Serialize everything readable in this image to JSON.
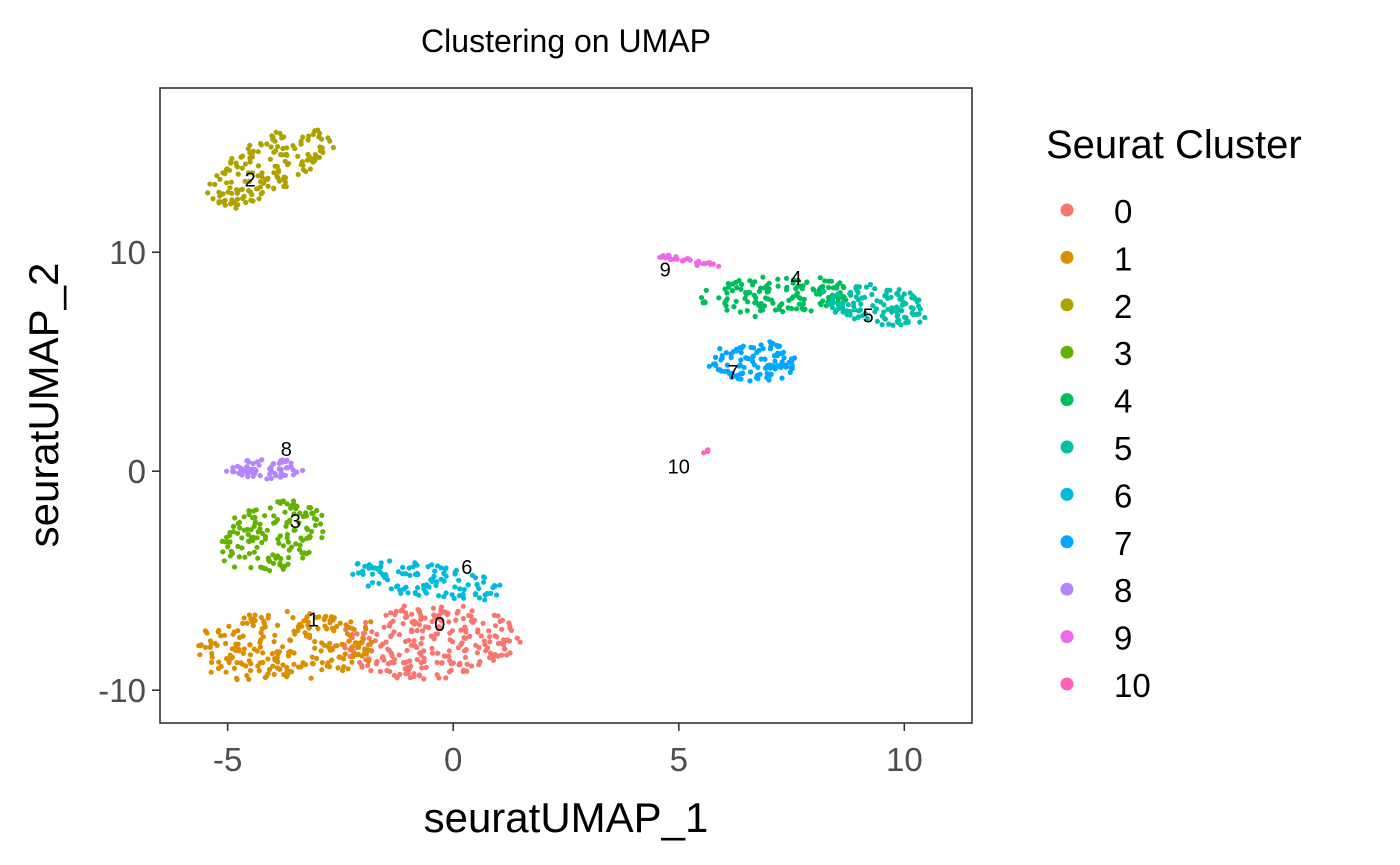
{
  "chart_data": {
    "type": "scatter",
    "title": "Clustering on UMAP",
    "xlabel": "seuratUMAP_1",
    "ylabel": "seuratUMAP_2",
    "xlim": [
      -6.5,
      11.5
    ],
    "ylim": [
      -11.5,
      17.5
    ],
    "x_ticks": [
      {
        "value": -5,
        "label": "-5"
      },
      {
        "value": 0,
        "label": "0"
      },
      {
        "value": 5,
        "label": "5"
      },
      {
        "value": 10,
        "label": "10"
      }
    ],
    "y_ticks": [
      {
        "value": -10,
        "label": "-10"
      },
      {
        "value": 0,
        "label": "0"
      },
      {
        "value": 10,
        "label": "10"
      }
    ],
    "grid": false,
    "legend": {
      "title": "Seurat Cluster",
      "placement": "right"
    },
    "series": [
      {
        "name": "0",
        "color": "#F8766D",
        "label_pos": [
          -0.3,
          -7.3
        ],
        "cluster": {
          "cx": -0.5,
          "cy": -7.8,
          "rx": 1.9,
          "ry": 1.6,
          "n": 260,
          "tilt": 0.15
        }
      },
      {
        "name": "1",
        "color": "#DB8E00",
        "label_pos": [
          -3.1,
          -7.1
        ],
        "cluster": {
          "cx": -3.7,
          "cy": -8.0,
          "rx": 1.9,
          "ry": 1.5,
          "n": 230,
          "tilt": 0.25
        }
      },
      {
        "name": "2",
        "color": "#AEA200",
        "label_pos": [
          -4.5,
          13.0
        ],
        "cluster": {
          "cx": -4.1,
          "cy": 13.9,
          "rx": 0.85,
          "ry": 1.9,
          "n": 170,
          "tilt": -0.6
        }
      },
      {
        "name": "3",
        "color": "#64B200",
        "label_pos": [
          -3.5,
          -2.6
        ],
        "cluster": {
          "cx": -4.0,
          "cy": -3.0,
          "rx": 1.0,
          "ry": 1.6,
          "n": 150,
          "tilt": -0.3
        }
      },
      {
        "name": "4",
        "color": "#00BD5C",
        "label_pos": [
          7.6,
          8.5
        ],
        "cluster": {
          "cx": 7.2,
          "cy": 8.0,
          "rx": 1.6,
          "ry": 0.8,
          "n": 140,
          "tilt": 0.1
        }
      },
      {
        "name": "5",
        "color": "#00C1A7",
        "label_pos": [
          9.2,
          6.8
        ],
        "cluster": {
          "cx": 9.4,
          "cy": 7.6,
          "rx": 1.2,
          "ry": 0.8,
          "n": 120,
          "tilt": -0.5
        }
      },
      {
        "name": "6",
        "color": "#00BADE",
        "label_pos": [
          0.3,
          -4.7
        ],
        "cluster": {
          "cx": -0.6,
          "cy": -5.0,
          "rx": 1.7,
          "ry": 0.7,
          "n": 110,
          "tilt": -0.3
        }
      },
      {
        "name": "7",
        "color": "#00A6FF",
        "label_pos": [
          6.2,
          4.2
        ],
        "cluster": {
          "cx": 6.7,
          "cy": 5.0,
          "rx": 0.9,
          "ry": 0.85,
          "n": 110,
          "tilt": 0.4
        }
      },
      {
        "name": "8",
        "color": "#B385FF",
        "label_pos": [
          -3.7,
          0.7
        ],
        "cluster": {
          "cx": -4.1,
          "cy": 0.1,
          "rx": 0.8,
          "ry": 0.45,
          "n": 70,
          "tilt": 0
        }
      },
      {
        "name": "9",
        "color": "#EF67EB",
        "label_pos": [
          4.7,
          8.9
        ],
        "cluster": {
          "cx": 5.2,
          "cy": 9.6,
          "rx": 0.7,
          "ry": 0.12,
          "n": 28,
          "tilt": -0.35
        }
      },
      {
        "name": "10",
        "color": "#FF63B6",
        "label_pos": [
          5.0,
          -0.1
        ],
        "cluster": {
          "cx": 5.6,
          "cy": 0.9,
          "rx": 0.1,
          "ry": 0.08,
          "n": 4,
          "tilt": 0
        }
      }
    ]
  }
}
